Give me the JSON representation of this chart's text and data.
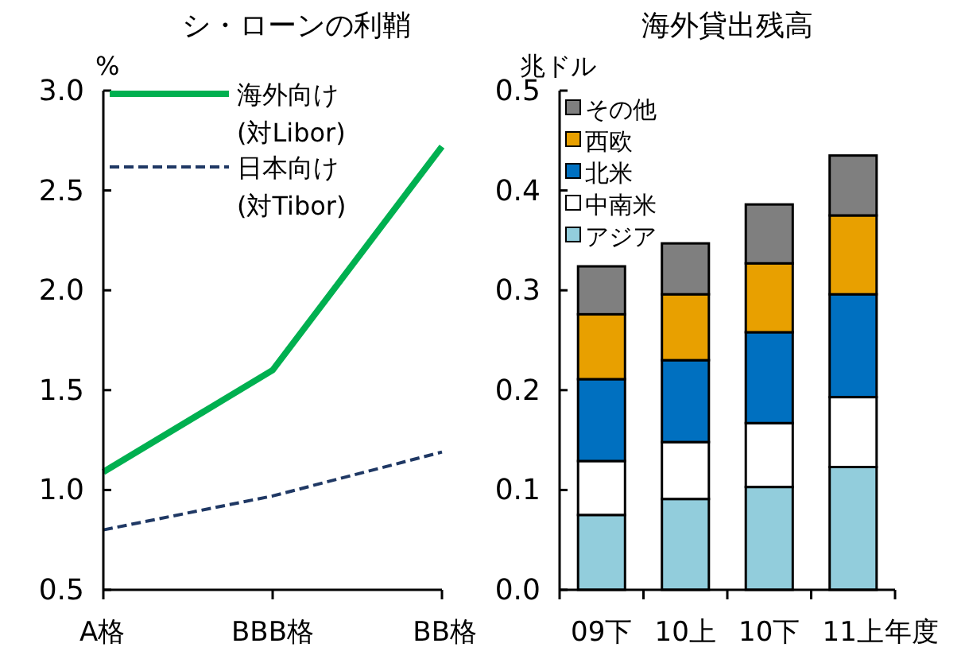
{
  "chart_data": [
    {
      "type": "line",
      "title": "シ・ローンの利鞘",
      "ylabel": "%",
      "categories": [
        "A格",
        "BBB格",
        "BB格"
      ],
      "ylim": [
        0.5,
        3.0
      ],
      "yticks": [
        {
          "value": 0.5,
          "label": "0.5"
        },
        {
          "value": 1.0,
          "label": "1.0"
        },
        {
          "value": 1.5,
          "label": "1.5"
        },
        {
          "value": 2.0,
          "label": "2.0"
        },
        {
          "value": 2.5,
          "label": "2.5"
        },
        {
          "value": 3.0,
          "label": "3.0"
        }
      ],
      "legend": "top left",
      "grid": false,
      "series": [
        {
          "name": "海外向け\n(対Libor)",
          "color": "#00b050",
          "line_style": "solid",
          "values": [
            1.09,
            1.6,
            2.72
          ]
        },
        {
          "name": "日本向け\n(対Tibor)",
          "color": "#1f3864",
          "line_style": "dashed",
          "values": [
            0.8,
            0.97,
            1.19
          ]
        }
      ]
    },
    {
      "type": "bar",
      "stacked": true,
      "title": "海外貸出残高",
      "ylabel": "兆ドル",
      "xlabel": "年度",
      "categories": [
        "09下",
        "10上",
        "10下",
        "11上"
      ],
      "ylim": [
        0.0,
        0.5
      ],
      "yticks": [
        {
          "value": 0,
          "label": "0.0"
        },
        {
          "value": 0.1,
          "label": "0.1"
        },
        {
          "value": 0.2,
          "label": "0.2"
        },
        {
          "value": 0.3,
          "label": "0.3"
        },
        {
          "value": 0.4,
          "label": "0.4"
        },
        {
          "value": 0.5,
          "label": "0.5"
        }
      ],
      "legend": "top left",
      "grid": false,
      "series": [
        {
          "name": "アジア",
          "color": "#92cddc",
          "values": [
            0.075,
            0.091,
            0.103,
            0.123
          ]
        },
        {
          "name": "中南米",
          "color": "#ffffff",
          "values": [
            0.054,
            0.057,
            0.064,
            0.07
          ]
        },
        {
          "name": "北米",
          "color": "#0070c0",
          "values": [
            0.082,
            0.082,
            0.091,
            0.103
          ]
        },
        {
          "name": "西欧",
          "color": "#e8a000",
          "values": [
            0.065,
            0.066,
            0.069,
            0.079
          ]
        },
        {
          "name": "その他",
          "color": "#7f7f7f",
          "values": [
            0.048,
            0.051,
            0.059,
            0.06
          ]
        }
      ]
    }
  ]
}
